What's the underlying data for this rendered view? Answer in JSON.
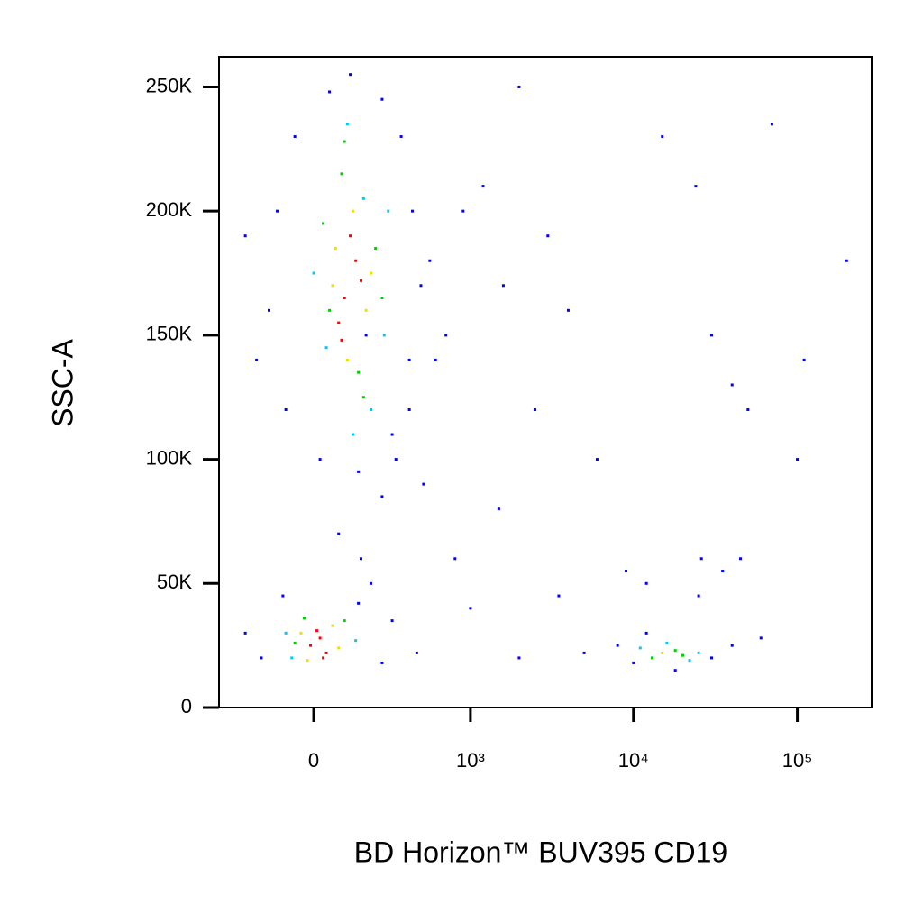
{
  "chart_data": {
    "type": "scatter",
    "x_label": "BD Horizon™ BUV395 CD19",
    "y_label": "SSC-A",
    "xscale": "biex",
    "xlim": [
      -394,
      284000
    ],
    "ylim": [
      0,
      262144
    ],
    "xticks": [
      0,
      {
        "value": 1000,
        "label": "10³"
      },
      {
        "value": 10000,
        "label": "10⁴"
      },
      {
        "value": 100000,
        "label": "10⁵"
      }
    ],
    "yticks": [
      0,
      {
        "value": 50000,
        "label": "50K"
      },
      {
        "value": 100000,
        "label": "100K"
      },
      {
        "value": 150000,
        "label": "150K"
      },
      {
        "value": 200000,
        "label": "200K"
      },
      {
        "value": 250000,
        "label": "250K"
      }
    ],
    "series": [
      {
        "color": "#0000ff",
        "x": [
          -150,
          -120,
          -200,
          -60,
          50,
          120,
          250,
          350,
          420,
          480,
          400,
          -90,
          20,
          150,
          250,
          320,
          80,
          160,
          200,
          300,
          550,
          700,
          900,
          1200,
          1600,
          2000,
          3000,
          2500,
          4000,
          6000,
          1500,
          800,
          1000,
          2000,
          3500,
          5000,
          8000,
          9000,
          10000,
          12000,
          25000,
          35000,
          45000,
          60000,
          15000,
          24000,
          30000,
          50000,
          100000,
          70000,
          200000,
          -250,
          -180,
          250,
          300,
          -100,
          150,
          450,
          40000,
          30000,
          18000,
          12000,
          26000,
          400,
          -250,
          180,
          500,
          600,
          40000,
          110000
        ],
        "y": [
          160000,
          200000,
          140000,
          230000,
          248000,
          255000,
          245000,
          230000,
          200000,
          170000,
          140000,
          120000,
          100000,
          95000,
          85000,
          100000,
          70000,
          60000,
          50000,
          110000,
          180000,
          150000,
          200000,
          210000,
          170000,
          250000,
          190000,
          120000,
          160000,
          100000,
          80000,
          60000,
          40000,
          20000,
          45000,
          22000,
          25000,
          55000,
          18000,
          30000,
          45000,
          55000,
          60000,
          28000,
          230000,
          210000,
          150000,
          120000,
          100000,
          235000,
          180000,
          30000,
          20000,
          18000,
          35000,
          45000,
          42000,
          22000,
          25000,
          20000,
          15000,
          50000,
          60000,
          120000,
          190000,
          150000,
          90000,
          140000,
          130000,
          140000
        ]
      },
      {
        "color": "#00c8ff",
        "x": [
          0,
          280,
          110,
          200,
          40,
          260,
          130,
          170,
          -90,
          140,
          -70,
          11000,
          22000,
          16000,
          25000
        ],
        "y": [
          175000,
          200000,
          235000,
          120000,
          145000,
          150000,
          110000,
          205000,
          30000,
          27000,
          20000,
          24000,
          19000,
          26000,
          22000
        ]
      },
      {
        "color": "#00d000",
        "x": [
          30,
          220,
          90,
          150,
          250,
          50,
          170,
          100,
          -60,
          100,
          -30,
          13000,
          18000,
          20000
        ],
        "y": [
          195000,
          185000,
          215000,
          135000,
          165000,
          160000,
          125000,
          228000,
          26000,
          35000,
          36000,
          20000,
          23000,
          21000
        ]
      },
      {
        "color": "#f0e000",
        "x": [
          60,
          180,
          130,
          200,
          70,
          110,
          -40,
          60,
          80,
          -20,
          15000
        ],
        "y": [
          170000,
          160000,
          200000,
          175000,
          185000,
          140000,
          30000,
          33000,
          24000,
          19000,
          22000
        ]
      },
      {
        "color": "#ff0000",
        "x": [
          100,
          140,
          80,
          120,
          160,
          90,
          -10,
          20,
          40,
          10,
          30
        ],
        "y": [
          165000,
          180000,
          155000,
          190000,
          172000,
          148000,
          25000,
          28000,
          22000,
          31000,
          20000
        ]
      }
    ]
  }
}
